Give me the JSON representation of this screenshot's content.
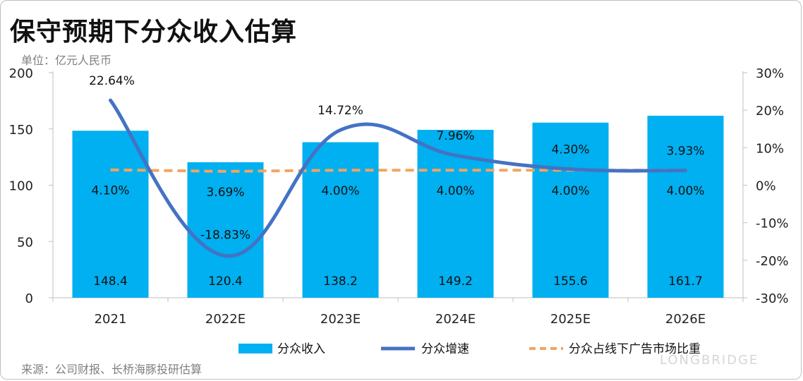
{
  "title": "保守预期下分众收入估算",
  "unit": "单位：亿元人民币",
  "source": "来源：公司财报、长桥海豚投研估算",
  "brand": "LONGBRIDGE",
  "chart_data": {
    "type": "bar",
    "categories": [
      "2021",
      "2022E",
      "2023E",
      "2024E",
      "2025E",
      "2026E"
    ],
    "ylim": [
      0,
      200
    ],
    "yticks": [
      "0",
      "50",
      "100",
      "150",
      "200"
    ],
    "y2lim": [
      -30,
      30
    ],
    "y2ticks": [
      "-30%",
      "-20%",
      "-10%",
      "0%",
      "10%",
      "20%",
      "30%"
    ],
    "legend_position": "bottom",
    "series": [
      {
        "name": "分众收入",
        "kind": "bar",
        "axis": "left",
        "color": "#00b0f0",
        "values": [
          148.4,
          120.4,
          138.2,
          149.2,
          155.6,
          161.7
        ],
        "labels": [
          "148.4",
          "120.4",
          "138.2",
          "149.2",
          "155.6",
          "161.7"
        ]
      },
      {
        "name": "分众增速",
        "kind": "line",
        "axis": "right",
        "color": "#4472c4",
        "values": [
          22.64,
          -18.83,
          14.72,
          7.96,
          4.3,
          3.93
        ],
        "labels": [
          "22.64%",
          "-18.83%",
          "14.72%",
          "7.96%",
          "4.30%",
          "3.93%"
        ]
      },
      {
        "name": "分众占线下广告市场比重",
        "kind": "dashed-line",
        "axis": "right",
        "color": "#f4a460",
        "values": [
          4.1,
          3.69,
          4.0,
          4.0,
          4.0,
          4.0
        ],
        "labels": [
          "4.10%",
          "3.69%",
          "4.00%",
          "4.00%",
          "4.00%",
          "4.00%"
        ]
      }
    ]
  }
}
